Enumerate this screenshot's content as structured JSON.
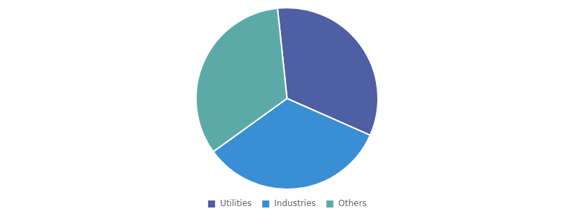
{
  "chart_data": {
    "type": "pie",
    "categories": [
      "Utilities",
      "Industries",
      "Others"
    ],
    "values": [
      33.3,
      33.4,
      33.3
    ],
    "colors": [
      "#4E5FA3",
      "#3A8ED4",
      "#5BAAA8"
    ],
    "legend": "bottom"
  }
}
